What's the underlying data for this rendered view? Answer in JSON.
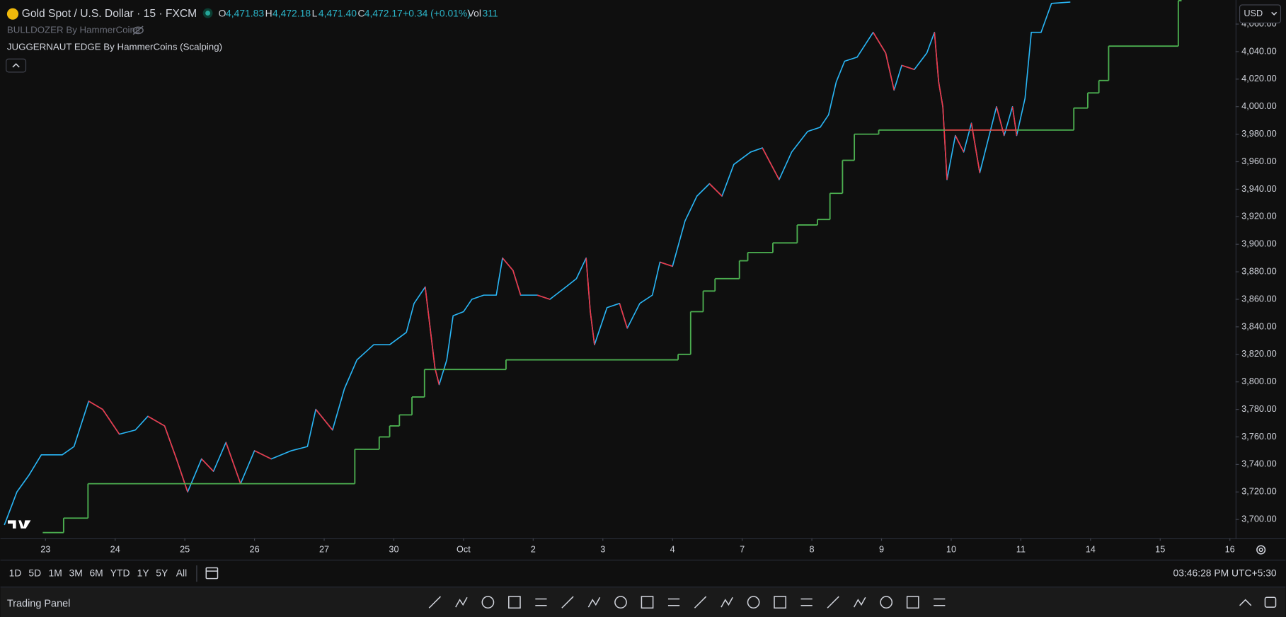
{
  "header": {
    "symbol": "Gold Spot / U.S. Dollar · 15 · FXCM",
    "o_label": "O",
    "o": "4,471.83",
    "h_label": "H",
    "h": "4,472.18",
    "l_label": "L",
    "l": "4,471.40",
    "c_label": "C",
    "c": "4,472.17",
    "change": "+0.34 (+0.01%)",
    "vol_label": "Vol",
    "vol": "311"
  },
  "indicators": [
    "BULLDOZER By HammerCoins",
    "JUGGERNAUT EDGE By HammerCoins (Scalping)"
  ],
  "currency": "USD",
  "timeframes": [
    "1D",
    "5D",
    "1M",
    "3M",
    "6M",
    "YTD",
    "1Y",
    "5Y",
    "All"
  ],
  "clock": "03:46:28 PM UTC+5:30",
  "panel": "Trading Panel",
  "chart_data": {
    "type": "line",
    "xlim": [
      -0.647,
      17.082
    ],
    "xticks": [
      {
        "value": 0,
        "label": "23"
      },
      {
        "value": 1,
        "label": "24"
      },
      {
        "value": 2,
        "label": "25"
      },
      {
        "value": 3,
        "label": "26"
      },
      {
        "value": 4,
        "label": "27"
      },
      {
        "value": 5,
        "label": "30"
      },
      {
        "value": 6,
        "label": "Oct"
      },
      {
        "value": 7,
        "label": "2"
      },
      {
        "value": 8,
        "label": "3"
      },
      {
        "value": 9,
        "label": "4"
      },
      {
        "value": 10,
        "label": "7"
      },
      {
        "value": 11,
        "label": "8"
      },
      {
        "value": 12,
        "label": "9"
      },
      {
        "value": 13,
        "label": "10"
      },
      {
        "value": 14,
        "label": "11"
      },
      {
        "value": 15,
        "label": "14"
      },
      {
        "value": 16,
        "label": "15"
      },
      {
        "value": 17,
        "label": "16"
      }
    ],
    "ylim": [
      3686.3,
      4077.5
    ],
    "yticks": [
      {
        "value": 3700,
        "label": "3,700.00"
      },
      {
        "value": 3720,
        "label": "3,720.00"
      },
      {
        "value": 3740,
        "label": "3,740.00"
      },
      {
        "value": 3760,
        "label": "3,760.00"
      },
      {
        "value": 3780,
        "label": "3,780.00"
      },
      {
        "value": 3800,
        "label": "3,800.00"
      },
      {
        "value": 3820,
        "label": "3,820.00"
      },
      {
        "value": 3840,
        "label": "3,840.00"
      },
      {
        "value": 3860,
        "label": "3,860.00"
      },
      {
        "value": 3880,
        "label": "3,880.00"
      },
      {
        "value": 3900,
        "label": "3,900.00"
      },
      {
        "value": 3920,
        "label": "3,920.00"
      },
      {
        "value": 3940,
        "label": "3,940.00"
      },
      {
        "value": 3960,
        "label": "3,960.00"
      },
      {
        "value": 3980,
        "label": "3,980.00"
      },
      {
        "value": 4000,
        "label": "4,000.00"
      },
      {
        "value": 4020,
        "label": "4,020.00"
      },
      {
        "value": 4040,
        "label": "4,040.00"
      },
      {
        "value": 4060,
        "label": "4,060.00"
      }
    ],
    "grid": false,
    "series": [
      {
        "color": "#29b6f6",
        "down_color": "#f23645",
        "x": [
          -0.59,
          -0.41,
          -0.24,
          -0.06,
          0.24,
          0.41,
          0.62,
          0.82,
          1.06,
          1.29,
          1.47,
          1.71,
          1.88,
          2.04,
          2.24,
          2.41,
          2.59,
          2.8,
          3.0,
          3.24,
          3.53,
          3.76,
          3.88,
          4.12,
          4.29,
          4.47,
          4.71,
          4.94,
          5.18,
          5.29,
          5.45,
          5.59,
          5.65,
          5.76,
          5.85,
          6.0,
          6.12,
          6.29,
          6.47,
          6.56,
          6.71,
          6.82,
          7.06,
          7.24,
          7.47,
          7.62,
          7.76,
          7.82,
          7.88,
          8.06,
          8.24,
          8.35,
          8.53,
          8.71,
          8.82,
          9.0,
          9.18,
          9.35,
          9.53,
          9.71,
          9.88,
          10.12,
          10.29,
          10.53,
          10.71,
          10.94,
          11.12,
          11.24,
          11.35,
          11.47,
          11.65,
          11.88,
          12.06,
          12.18,
          12.29,
          12.47,
          12.65,
          12.76,
          12.82,
          12.88,
          12.94,
          13.06,
          13.18,
          13.29,
          13.41,
          13.53,
          13.65,
          13.76,
          13.88,
          13.94,
          14.06,
          14.15,
          14.29,
          14.44,
          14.71
        ],
        "values": [
          3696,
          3720,
          3732,
          3747,
          3747,
          3753,
          3786,
          3780,
          3762,
          3765,
          3775,
          3768,
          3744,
          3720,
          3744,
          3735,
          3756,
          3726,
          3750,
          3744,
          3750,
          3753,
          3780,
          3765,
          3795,
          3816,
          3827,
          3827,
          3836,
          3857,
          3869,
          3810,
          3798,
          3816,
          3848,
          3851,
          3860,
          3863,
          3863,
          3890,
          3881,
          3863,
          3863,
          3860,
          3869,
          3875,
          3890,
          3851,
          3827,
          3854,
          3857,
          3839,
          3857,
          3863,
          3887,
          3884,
          3917,
          3935,
          3944,
          3935,
          3958,
          3967,
          3970,
          3947,
          3967,
          3982,
          3985,
          3994,
          4018,
          4033,
          4036,
          4054,
          4039,
          4012,
          4030,
          4027,
          4039,
          4054,
          4018,
          4000,
          3947,
          3979,
          3967,
          3988,
          3952,
          3976,
          4000,
          3979,
          4000,
          3979,
          4006,
          4054,
          4054,
          4075,
          4076
        ]
      },
      {
        "color": "#4caf50",
        "step": true,
        "x": [
          -0.04,
          0.26,
          0.61,
          4.44,
          4.79,
          4.94,
          5.08,
          5.26,
          5.44,
          6.61,
          9.08,
          9.26,
          9.44,
          9.61,
          9.96,
          10.08,
          10.44,
          10.79,
          11.08,
          11.26,
          11.44,
          11.61,
          11.96,
          14.76,
          14.96,
          15.12,
          15.26,
          16.26
        ],
        "values": [
          3690.5,
          3701,
          3726,
          3751,
          3760,
          3768,
          3776,
          3789,
          3809,
          3816,
          3820,
          3851,
          3866,
          3875,
          3888,
          3894,
          3901,
          3914,
          3918,
          3937,
          3961,
          3980,
          3983,
          3999,
          4010,
          4019,
          4044,
          4077
        ]
      },
      {
        "color": "#f23645",
        "x": [
          12.91,
          13.94
        ],
        "values": [
          3983,
          3983
        ]
      }
    ]
  }
}
